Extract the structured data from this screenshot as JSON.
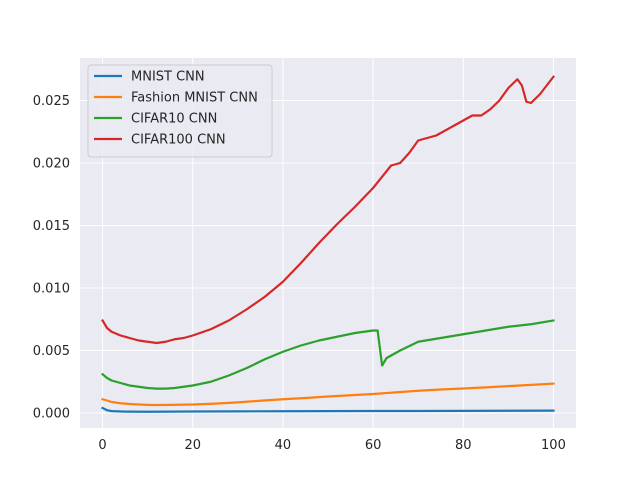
{
  "chart_data": {
    "type": "line",
    "title": "",
    "xlabel": "",
    "ylabel": "",
    "xlim": [
      -5,
      105
    ],
    "ylim": [
      -0.0012,
      0.0284
    ],
    "xticks": [
      0,
      20,
      40,
      60,
      80,
      100
    ],
    "xtick_labels": [
      "0",
      "20",
      "40",
      "60",
      "80",
      "100"
    ],
    "yticks": [
      0.0,
      0.005,
      0.01,
      0.015,
      0.02,
      0.025
    ],
    "ytick_labels": [
      "0.000",
      "0.005",
      "0.010",
      "0.015",
      "0.020",
      "0.025"
    ],
    "grid": true,
    "legend_position": "top-left",
    "series": [
      {
        "name": "MNIST CNN",
        "color": "#1f77b4",
        "points": [
          [
            0,
            0.0004
          ],
          [
            1,
            0.00022
          ],
          [
            2,
            0.00015
          ],
          [
            5,
            0.00011
          ],
          [
            10,
            0.0001
          ],
          [
            20,
            0.00012
          ],
          [
            30,
            0.00013
          ],
          [
            40,
            0.00014
          ],
          [
            50,
            0.00015
          ],
          [
            60,
            0.00016
          ],
          [
            70,
            0.00016
          ],
          [
            80,
            0.00017
          ],
          [
            90,
            0.00018
          ],
          [
            100,
            0.00019
          ]
        ]
      },
      {
        "name": "Fashion MNIST CNN",
        "color": "#ff7f0e",
        "points": [
          [
            0,
            0.0011
          ],
          [
            1,
            0.001
          ],
          [
            2,
            0.00088
          ],
          [
            4,
            0.00078
          ],
          [
            6,
            0.00072
          ],
          [
            8,
            0.00068
          ],
          [
            10,
            0.00065
          ],
          [
            12,
            0.00064
          ],
          [
            15,
            0.00065
          ],
          [
            20,
            0.00068
          ],
          [
            25,
            0.00075
          ],
          [
            30,
            0.00085
          ],
          [
            35,
            0.00098
          ],
          [
            40,
            0.0011
          ],
          [
            45,
            0.0012
          ],
          [
            50,
            0.00132
          ],
          [
            55,
            0.00142
          ],
          [
            60,
            0.00152
          ],
          [
            65,
            0.00165
          ],
          [
            70,
            0.00178
          ],
          [
            75,
            0.00188
          ],
          [
            80,
            0.00196
          ],
          [
            85,
            0.00205
          ],
          [
            90,
            0.00215
          ],
          [
            95,
            0.00225
          ],
          [
            100,
            0.00235
          ]
        ]
      },
      {
        "name": "CIFAR10 CNN",
        "color": "#2ca02c",
        "points": [
          [
            0,
            0.0031
          ],
          [
            1,
            0.0028
          ],
          [
            2,
            0.0026
          ],
          [
            4,
            0.0024
          ],
          [
            6,
            0.0022
          ],
          [
            8,
            0.0021
          ],
          [
            10,
            0.002
          ],
          [
            12,
            0.00195
          ],
          [
            14,
            0.00195
          ],
          [
            16,
            0.002
          ],
          [
            20,
            0.0022
          ],
          [
            24,
            0.0025
          ],
          [
            28,
            0.003
          ],
          [
            32,
            0.0036
          ],
          [
            36,
            0.0043
          ],
          [
            40,
            0.0049
          ],
          [
            44,
            0.0054
          ],
          [
            48,
            0.0058
          ],
          [
            52,
            0.0061
          ],
          [
            56,
            0.0064
          ],
          [
            60,
            0.0066
          ],
          [
            61,
            0.0066
          ],
          [
            62,
            0.0038
          ],
          [
            63,
            0.0044
          ],
          [
            66,
            0.005
          ],
          [
            70,
            0.0057
          ],
          [
            75,
            0.006
          ],
          [
            80,
            0.0063
          ],
          [
            85,
            0.0066
          ],
          [
            90,
            0.0069
          ],
          [
            95,
            0.0071
          ],
          [
            100,
            0.0074
          ]
        ]
      },
      {
        "name": "CIFAR100 CNN",
        "color": "#d62728",
        "points": [
          [
            0,
            0.0074
          ],
          [
            1,
            0.0068
          ],
          [
            2,
            0.0065
          ],
          [
            4,
            0.0062
          ],
          [
            6,
            0.006
          ],
          [
            8,
            0.0058
          ],
          [
            10,
            0.0057
          ],
          [
            12,
            0.0056
          ],
          [
            14,
            0.0057
          ],
          [
            16,
            0.0059
          ],
          [
            18,
            0.006
          ],
          [
            20,
            0.0062
          ],
          [
            24,
            0.0067
          ],
          [
            28,
            0.0074
          ],
          [
            32,
            0.0083
          ],
          [
            36,
            0.0093
          ],
          [
            40,
            0.0105
          ],
          [
            44,
            0.012
          ],
          [
            48,
            0.0136
          ],
          [
            52,
            0.0151
          ],
          [
            56,
            0.0165
          ],
          [
            60,
            0.018
          ],
          [
            64,
            0.0198
          ],
          [
            66,
            0.02
          ],
          [
            68,
            0.0208
          ],
          [
            70,
            0.0218
          ],
          [
            74,
            0.0222
          ],
          [
            78,
            0.023
          ],
          [
            82,
            0.0238
          ],
          [
            84,
            0.0238
          ],
          [
            86,
            0.0243
          ],
          [
            88,
            0.025
          ],
          [
            90,
            0.026
          ],
          [
            92,
            0.0267
          ],
          [
            93,
            0.0262
          ],
          [
            94,
            0.0249
          ],
          [
            95,
            0.0248
          ],
          [
            97,
            0.0255
          ],
          [
            100,
            0.0269
          ]
        ]
      }
    ]
  }
}
